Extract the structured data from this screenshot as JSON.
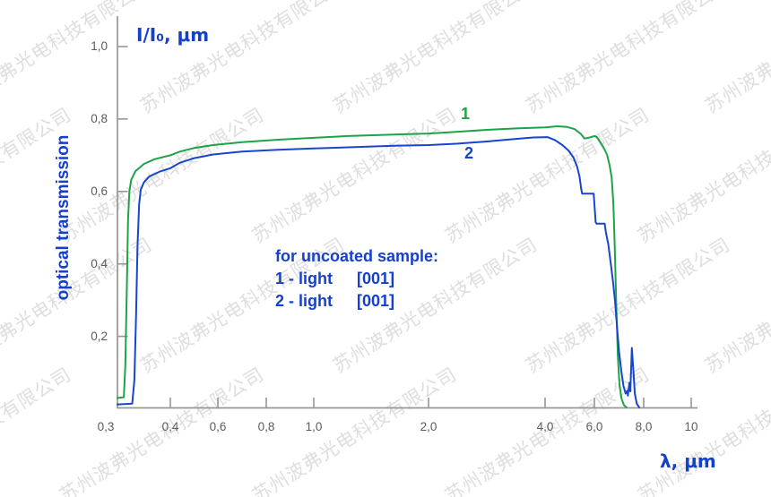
{
  "watermark": {
    "text": "苏州波弗光电科技有限公司"
  },
  "colors": {
    "axis": "#969696",
    "tick_text": "#5c5c5c",
    "label_blue": "#1540cb",
    "series1_green": "#1fa347",
    "series2_blue": "#1845cd",
    "watermark_gray": "rgba(128,128,128,0.26)"
  },
  "chart_data": {
    "type": "line",
    "title": "",
    "y_axis_title": "I/I₀, μm",
    "y_axis_label": "optical transmission",
    "x_axis_title": "λ, μm",
    "x_scale": "log-like (non-uniform spacing between labeled ticks)",
    "xlim": [
      0.3,
      10
    ],
    "ylim": [
      0,
      1.05
    ],
    "grid": false,
    "legend_position": "center annotation block",
    "x_ticks": [
      {
        "v": 0.3,
        "label": "0,3"
      },
      {
        "v": 0.4,
        "label": "0,4"
      },
      {
        "v": 0.6,
        "label": "0,6"
      },
      {
        "v": 0.8,
        "label": "0,8"
      },
      {
        "v": 1.0,
        "label": "1,0"
      },
      {
        "v": 2.0,
        "label": "2,0"
      },
      {
        "v": 4.0,
        "label": "4,0"
      },
      {
        "v": 6.0,
        "label": "6,0"
      },
      {
        "v": 8.0,
        "label": "8,0"
      },
      {
        "v": 10,
        "label": "10"
      }
    ],
    "y_ticks": [
      {
        "v": 0.2,
        "label": "0,2"
      },
      {
        "v": 0.4,
        "label": "0,4"
      },
      {
        "v": 0.6,
        "label": "0,6"
      },
      {
        "v": 0.8,
        "label": "0,8"
      },
      {
        "v": 1.0,
        "label": "1,0"
      }
    ],
    "annotation": {
      "title": "for uncoated sample:",
      "rows": [
        {
          "name": "1 - light",
          "value": "[001]"
        },
        {
          "name": "2 - light",
          "value": "[001]"
        }
      ]
    },
    "series": [
      {
        "name": "1",
        "color": "#1fa347",
        "points": [
          [
            0.3,
            0.03
          ],
          [
            0.312,
            0.032
          ],
          [
            0.315,
            0.12
          ],
          [
            0.318,
            0.35
          ],
          [
            0.32,
            0.52
          ],
          [
            0.3225,
            0.6
          ],
          [
            0.326,
            0.632
          ],
          [
            0.334,
            0.656
          ],
          [
            0.35,
            0.676
          ],
          [
            0.37,
            0.689
          ],
          [
            0.4,
            0.7
          ],
          [
            0.44,
            0.71
          ],
          [
            0.5,
            0.72
          ],
          [
            0.58,
            0.728
          ],
          [
            0.7,
            0.736
          ],
          [
            0.85,
            0.743
          ],
          [
            1.0,
            0.748
          ],
          [
            1.3,
            0.753
          ],
          [
            1.7,
            0.757
          ],
          [
            2.0,
            0.76
          ],
          [
            2.5,
            0.765
          ],
          [
            3.0,
            0.77
          ],
          [
            3.5,
            0.774
          ],
          [
            4.0,
            0.777
          ],
          [
            4.5,
            0.78
          ],
          [
            4.9,
            0.778
          ],
          [
            5.2,
            0.772
          ],
          [
            5.45,
            0.759
          ],
          [
            5.6,
            0.746
          ],
          [
            5.75,
            0.748
          ],
          [
            6.0,
            0.753
          ],
          [
            6.1,
            0.75
          ],
          [
            6.25,
            0.735
          ],
          [
            6.4,
            0.718
          ],
          [
            6.52,
            0.7
          ],
          [
            6.62,
            0.672
          ],
          [
            6.7,
            0.638
          ],
          [
            6.77,
            0.565
          ],
          [
            6.83,
            0.44
          ],
          [
            6.89,
            0.28
          ],
          [
            6.95,
            0.15
          ],
          [
            7.02,
            0.065
          ],
          [
            7.1,
            0.028
          ],
          [
            7.2,
            0.01
          ],
          [
            7.3,
            0.004
          ]
        ]
      },
      {
        "name": "2",
        "color": "#1845cd",
        "points": [
          [
            0.3,
            0.012
          ],
          [
            0.328,
            0.014
          ],
          [
            0.332,
            0.08
          ],
          [
            0.335,
            0.25
          ],
          [
            0.338,
            0.45
          ],
          [
            0.341,
            0.565
          ],
          [
            0.344,
            0.605
          ],
          [
            0.35,
            0.625
          ],
          [
            0.36,
            0.641
          ],
          [
            0.38,
            0.655
          ],
          [
            0.4,
            0.664
          ],
          [
            0.44,
            0.679
          ],
          [
            0.5,
            0.692
          ],
          [
            0.58,
            0.702
          ],
          [
            0.7,
            0.71
          ],
          [
            0.85,
            0.715
          ],
          [
            1.0,
            0.719
          ],
          [
            1.3,
            0.722
          ],
          [
            1.7,
            0.726
          ],
          [
            2.0,
            0.728
          ],
          [
            2.5,
            0.732
          ],
          [
            3.0,
            0.738
          ],
          [
            3.5,
            0.745
          ],
          [
            3.8,
            0.749
          ],
          [
            4.1,
            0.75
          ],
          [
            4.4,
            0.742
          ],
          [
            4.7,
            0.728
          ],
          [
            4.95,
            0.713
          ],
          [
            5.15,
            0.694
          ],
          [
            5.3,
            0.668
          ],
          [
            5.4,
            0.64
          ],
          [
            5.46,
            0.61
          ],
          [
            5.5,
            0.594
          ],
          [
            5.97,
            0.594
          ],
          [
            6.01,
            0.555
          ],
          [
            6.05,
            0.515
          ],
          [
            6.09,
            0.511
          ],
          [
            6.42,
            0.511
          ],
          [
            6.47,
            0.486
          ],
          [
            6.56,
            0.456
          ],
          [
            6.66,
            0.405
          ],
          [
            6.76,
            0.348
          ],
          [
            6.84,
            0.295
          ],
          [
            6.92,
            0.225
          ],
          [
            7.0,
            0.158
          ],
          [
            7.09,
            0.105
          ],
          [
            7.18,
            0.062
          ],
          [
            7.27,
            0.042
          ],
          [
            7.33,
            0.05
          ],
          [
            7.36,
            0.036
          ],
          [
            7.42,
            0.072
          ],
          [
            7.46,
            0.048
          ],
          [
            7.52,
            0.168
          ],
          [
            7.58,
            0.105
          ],
          [
            7.64,
            0.042
          ],
          [
            7.72,
            0.014
          ],
          [
            7.82,
            0.004
          ]
        ]
      }
    ]
  }
}
